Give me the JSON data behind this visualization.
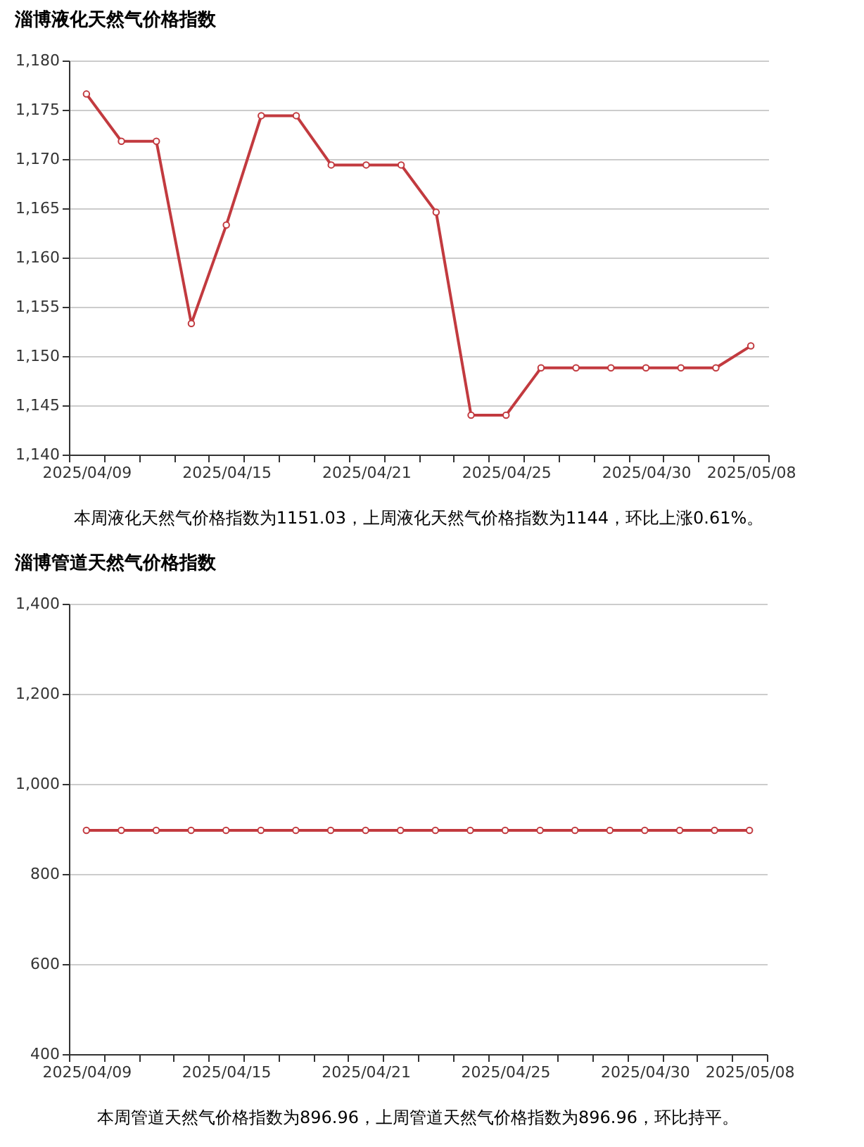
{
  "chart_data": [
    {
      "type": "line",
      "title": "淄博液化天然气价格指数",
      "categories": [
        "2025/04/09",
        null,
        null,
        null,
        "2025/04/15",
        null,
        null,
        null,
        "2025/04/21",
        null,
        null,
        null,
        "2025/04/25",
        null,
        null,
        null,
        "2025/04/30",
        null,
        null,
        "2025/05/08"
      ],
      "series": [
        {
          "color": "#c23a3f",
          "values": [
            1176.6,
            1171.8,
            1171.8,
            1153.3,
            1163.3,
            1174.4,
            1174.4,
            1169.4,
            1169.4,
            1169.4,
            1164.6,
            1144.0,
            1144.0,
            1148.8,
            1148.8,
            1148.8,
            1148.8,
            1148.8,
            1148.8,
            1151.03
          ]
        }
      ],
      "ylim": [
        1140,
        1180
      ],
      "yticks": [
        {
          "value": 1140,
          "label": "1,140"
        },
        {
          "value": 1145,
          "label": "1,145"
        },
        {
          "value": 1150,
          "label": "1,150"
        },
        {
          "value": 1155,
          "label": "1,155"
        },
        {
          "value": 1160,
          "label": "1,160"
        },
        {
          "value": 1165,
          "label": "1,165"
        },
        {
          "value": 1170,
          "label": "1,170"
        },
        {
          "value": 1175,
          "label": "1,175"
        },
        {
          "value": 1180,
          "label": "1,180"
        }
      ],
      "grid": "y",
      "marker": "circle",
      "annotations": [
        "本周液化天然气价格指数为1151.03，上周液化天然气价格指数为1144，环比上涨0.61%。"
      ]
    },
    {
      "type": "line",
      "title": "淄博管道天然气价格指数",
      "categories": [
        "2025/04/09",
        null,
        null,
        null,
        "2025/04/15",
        null,
        null,
        null,
        "2025/04/21",
        null,
        null,
        null,
        "2025/04/25",
        null,
        null,
        null,
        "2025/04/30",
        null,
        null,
        "2025/05/08"
      ],
      "series": [
        {
          "color": "#c23a3f",
          "values": [
            896.96,
            896.96,
            896.96,
            896.96,
            896.96,
            896.96,
            896.96,
            896.96,
            896.96,
            896.96,
            896.96,
            896.96,
            896.96,
            896.96,
            896.96,
            896.96,
            896.96,
            896.96,
            896.96,
            896.96
          ]
        }
      ],
      "ylim": [
        400,
        1400
      ],
      "yticks": [
        400,
        600,
        800,
        {
          "value": 1000,
          "label": "1,000"
        },
        {
          "value": 1200,
          "label": "1,200"
        },
        {
          "value": 1400,
          "label": "1,400"
        }
      ],
      "grid": "y",
      "marker": "circle",
      "annotations": [
        "本周管道天然气价格指数为896.96，上周管道天然气价格指数为896.96，环比持平。"
      ]
    }
  ]
}
